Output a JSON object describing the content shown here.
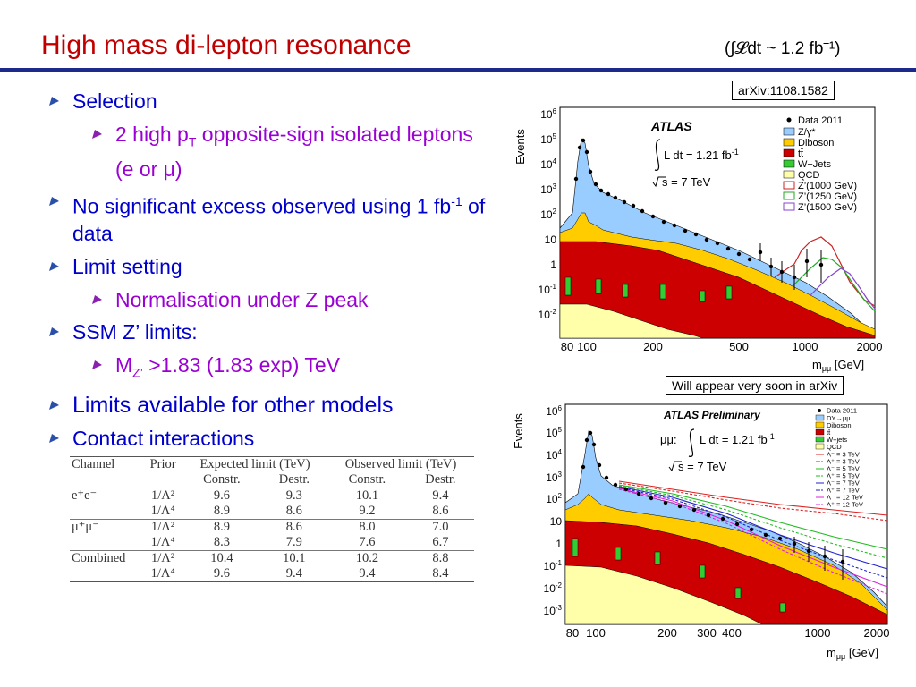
{
  "slide": {
    "title": "High mass di-lepton resonance",
    "lumi": "(∫𝓛dt ~ 1.2 fb⁻¹)"
  },
  "bullets": {
    "b1": "Selection",
    "b1_sub_a": "2 high p",
    "b1_sub_b": "T",
    "b1_sub_c": " opposite-sign isolated leptons (e or μ)",
    "b2_a": "No significant excess observed using 1 fb",
    "b2_b": "-1",
    "b2_c": " of data",
    "b3": "Limit setting",
    "b3_sub": "Normalisation under Z peak",
    "b4": "SSM Z’ limits:",
    "b4_sub_a": "M",
    "b4_sub_b": "Z’",
    "b4_sub_c": " >1.83 (1.83 exp) TeV",
    "b5": "Limits available for other models",
    "b6": "Contact interactions"
  },
  "table": {
    "header1": [
      "Channel",
      "Prior",
      "Expected limit (TeV)",
      "Observed limit (TeV)"
    ],
    "header2": [
      "Constr.",
      "Destr.",
      "Constr.",
      "Destr."
    ],
    "rows": [
      {
        "channel": "e⁺e⁻",
        "prior": "1/Λ²",
        "v": [
          "9.6",
          "9.3",
          "10.1",
          "9.4"
        ]
      },
      {
        "channel": "",
        "prior": "1/Λ⁴",
        "v": [
          "8.9",
          "8.6",
          "9.2",
          "8.6"
        ]
      },
      {
        "channel": "μ⁺μ⁻",
        "prior": "1/Λ²",
        "v": [
          "8.9",
          "8.6",
          "8.0",
          "7.0"
        ]
      },
      {
        "channel": "",
        "prior": "1/Λ⁴",
        "v": [
          "8.3",
          "7.9",
          "7.6",
          "6.7"
        ]
      },
      {
        "channel": "Combined",
        "prior": "1/Λ²",
        "v": [
          "10.4",
          "10.1",
          "10.2",
          "8.8"
        ]
      },
      {
        "channel": "",
        "prior": "1/Λ⁴",
        "v": [
          "9.6",
          "9.4",
          "9.4",
          "8.4"
        ]
      }
    ]
  },
  "plot1": {
    "badge": "arXiv:1108.1582",
    "ylabel": "Events",
    "xlabel": "m",
    "xlabel_sub": "μμ",
    "xlabel_unit": " [GeV]",
    "atlas": "ATLAS",
    "lumi_a": "L dt = 1.21 fb",
    "lumi_b": "-1",
    "energy": "s = 7 TeV",
    "yticks": [
      {
        "m": "10",
        "e": "6"
      },
      {
        "m": "10",
        "e": "5"
      },
      {
        "m": "10",
        "e": "4"
      },
      {
        "m": "10",
        "e": "3"
      },
      {
        "m": "10",
        "e": "2"
      },
      {
        "m": "10",
        "e": ""
      },
      {
        "m": "1",
        "e": ""
      },
      {
        "m": "10",
        "e": "-1"
      },
      {
        "m": "10",
        "e": "-2"
      }
    ],
    "xticks": [
      "80",
      "100",
      "200",
      "500",
      "1000",
      "2000"
    ],
    "legend": [
      "Data 2011",
      "Z/γ*",
      "Diboson",
      "tt̄",
      "W+Jets",
      "QCD",
      "Z’(1000 GeV)",
      "Z’(1250 GeV)",
      "Z’(1500 GeV)"
    ]
  },
  "plot2": {
    "badge": "Will appear very soon in arXiv",
    "ylabel": "Events",
    "xlabel": "m",
    "xlabel_sub": "μμ",
    "xlabel_unit": " [GeV]",
    "atlas": "ATLAS Preliminary",
    "lumi_pre": "μμ:",
    "lumi_a": "L dt = 1.21 fb",
    "lumi_b": "-1",
    "energy": "s = 7 TeV",
    "yticks": [
      {
        "m": "10",
        "e": "6"
      },
      {
        "m": "10",
        "e": "5"
      },
      {
        "m": "10",
        "e": "4"
      },
      {
        "m": "10",
        "e": "3"
      },
      {
        "m": "10",
        "e": "2"
      },
      {
        "m": "10",
        "e": ""
      },
      {
        "m": "1",
        "e": ""
      },
      {
        "m": "10",
        "e": "-1"
      },
      {
        "m": "10",
        "e": "-2"
      },
      {
        "m": "10",
        "e": "-3"
      }
    ],
    "xticks": [
      "80",
      "100",
      "200",
      "300",
      "400",
      "1000",
      "2000"
    ],
    "legend": [
      "Data 2011",
      "DY→μμ",
      "Diboson",
      "tt̄",
      "W+jets",
      "QCD",
      "Λ⁻ = 3 TeV",
      "Λ⁺ = 3 TeV",
      "Λ⁻ = 5 TeV",
      "Λ⁺ = 5 TeV",
      "Λ⁻ = 7 TeV",
      "Λ⁺ = 7 TeV",
      "Λ⁻ = 12 TeV",
      "Λ⁺ = 12 TeV"
    ]
  },
  "colors": {
    "title": "#c00000",
    "bullet_l1": "#0000cc",
    "bullet_l2": "#9b00d3",
    "rule": "#1c2a8c",
    "dy": "#99ccff",
    "diboson": "#ffcc00",
    "ttbar": "#cc0000",
    "wjets": "#33cc33",
    "qcd": "#ffffaa"
  }
}
